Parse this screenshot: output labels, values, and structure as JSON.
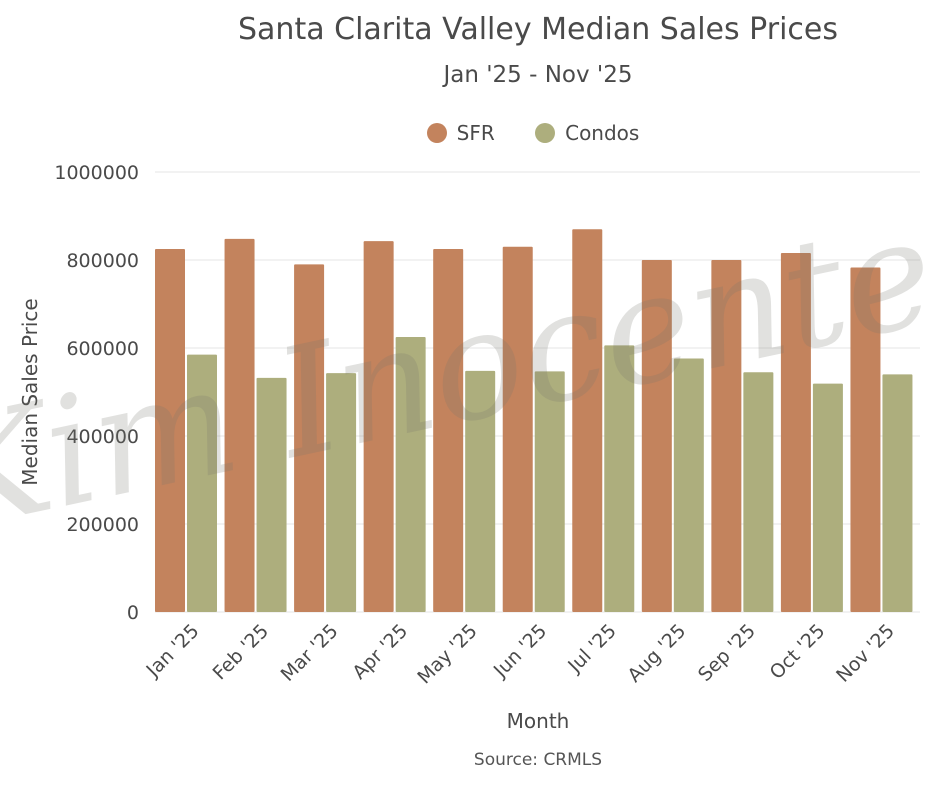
{
  "chart_data": {
    "type": "bar",
    "title": "Santa Clarita Valley Median Sales Prices",
    "subtitle": "Jan '25 - Nov '25",
    "xlabel": "Month",
    "ylabel": "Median Sales Price",
    "source": "Source: CRMLS",
    "watermark": "Kim Inocente",
    "ylim": [
      0,
      1000000
    ],
    "yticks": [
      "0",
      "200000",
      "400000",
      "600000",
      "800000",
      "1000000"
    ],
    "categories": [
      "Jan '25",
      "Feb '25",
      "Mar '25",
      "Apr '25",
      "May '25",
      "Jun '25",
      "Jul '25",
      "Aug '25",
      "Sep '25",
      "Oct '25",
      "Nov '25"
    ],
    "series": [
      {
        "name": "SFR",
        "color": "#c3835d",
        "values": [
          825000,
          848000,
          790000,
          843000,
          825000,
          830000,
          870000,
          800000,
          800000,
          816000,
          783000
        ]
      },
      {
        "name": "Condos",
        "color": "#adae7d",
        "values": [
          585000,
          532000,
          543000,
          625000,
          548000,
          547000,
          606000,
          576000,
          545000,
          519000,
          540000
        ]
      }
    ]
  }
}
